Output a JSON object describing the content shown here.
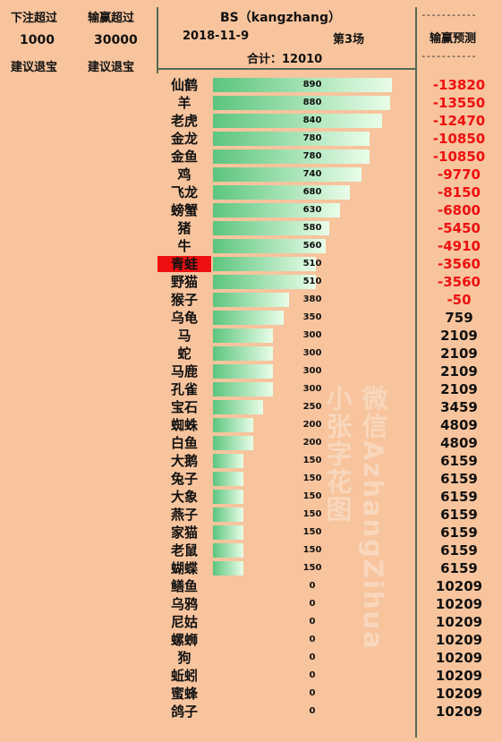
{
  "header": {
    "bet_over_label": "下注超过",
    "win_loss_over_label": "输赢超过",
    "bet_threshold": "1000",
    "win_loss_threshold": "30000",
    "advice_left": "建议退宝",
    "advice_right": "建议退宝",
    "title": "BS（kangzhang）",
    "date": "2018-11-9",
    "round": "第3场",
    "total": "合计：12010",
    "prediction_label": "输赢预测",
    "dashes_top": "-----------",
    "dashes_bottom": "-----------"
  },
  "watermark": {
    "line1": "微信AzhangZihua",
    "line2": "小张字花图"
  },
  "colors": {
    "highlight": "#ee1010",
    "negative": "#ee1010",
    "bar_start": "#5cc57e",
    "bar_end": "#e9fde8"
  },
  "chart_data": {
    "type": "bar",
    "orientation": "horizontal",
    "categories": [
      "仙鹤",
      "羊",
      "老虎",
      "金龙",
      "金鱼",
      "鸡",
      "飞龙",
      "螃蟹",
      "猪",
      "牛",
      "青蛙",
      "野猫",
      "猴子",
      "乌龟",
      "马",
      "蛇",
      "马鹿",
      "孔雀",
      "宝石",
      "蜘蛛",
      "白鱼",
      "大鹅",
      "兔子",
      "大象",
      "燕子",
      "家猫",
      "老鼠",
      "蝴蝶",
      "鳝鱼",
      "乌鸦",
      "尼姑",
      "螺蛳",
      "狗",
      "蚯蚓",
      "蜜蜂",
      "鸽子"
    ],
    "values": [
      890,
      880,
      840,
      780,
      780,
      740,
      680,
      630,
      580,
      560,
      510,
      510,
      380,
      350,
      300,
      300,
      300,
      300,
      250,
      200,
      200,
      150,
      150,
      150,
      150,
      150,
      150,
      150,
      0,
      0,
      0,
      0,
      0,
      0,
      0,
      0
    ],
    "predictions": [
      -13820,
      -13550,
      -12470,
      -10850,
      -10850,
      -9770,
      -8150,
      -6800,
      -5450,
      -4910,
      -3560,
      -3560,
      -50,
      759,
      2109,
      2109,
      2109,
      2109,
      3459,
      4809,
      4809,
      6159,
      6159,
      6159,
      6159,
      6159,
      6159,
      6159,
      10209,
      10209,
      10209,
      10209,
      10209,
      10209,
      10209,
      10209
    ],
    "highlighted": "青蛙",
    "xlim": [
      0,
      890
    ]
  }
}
